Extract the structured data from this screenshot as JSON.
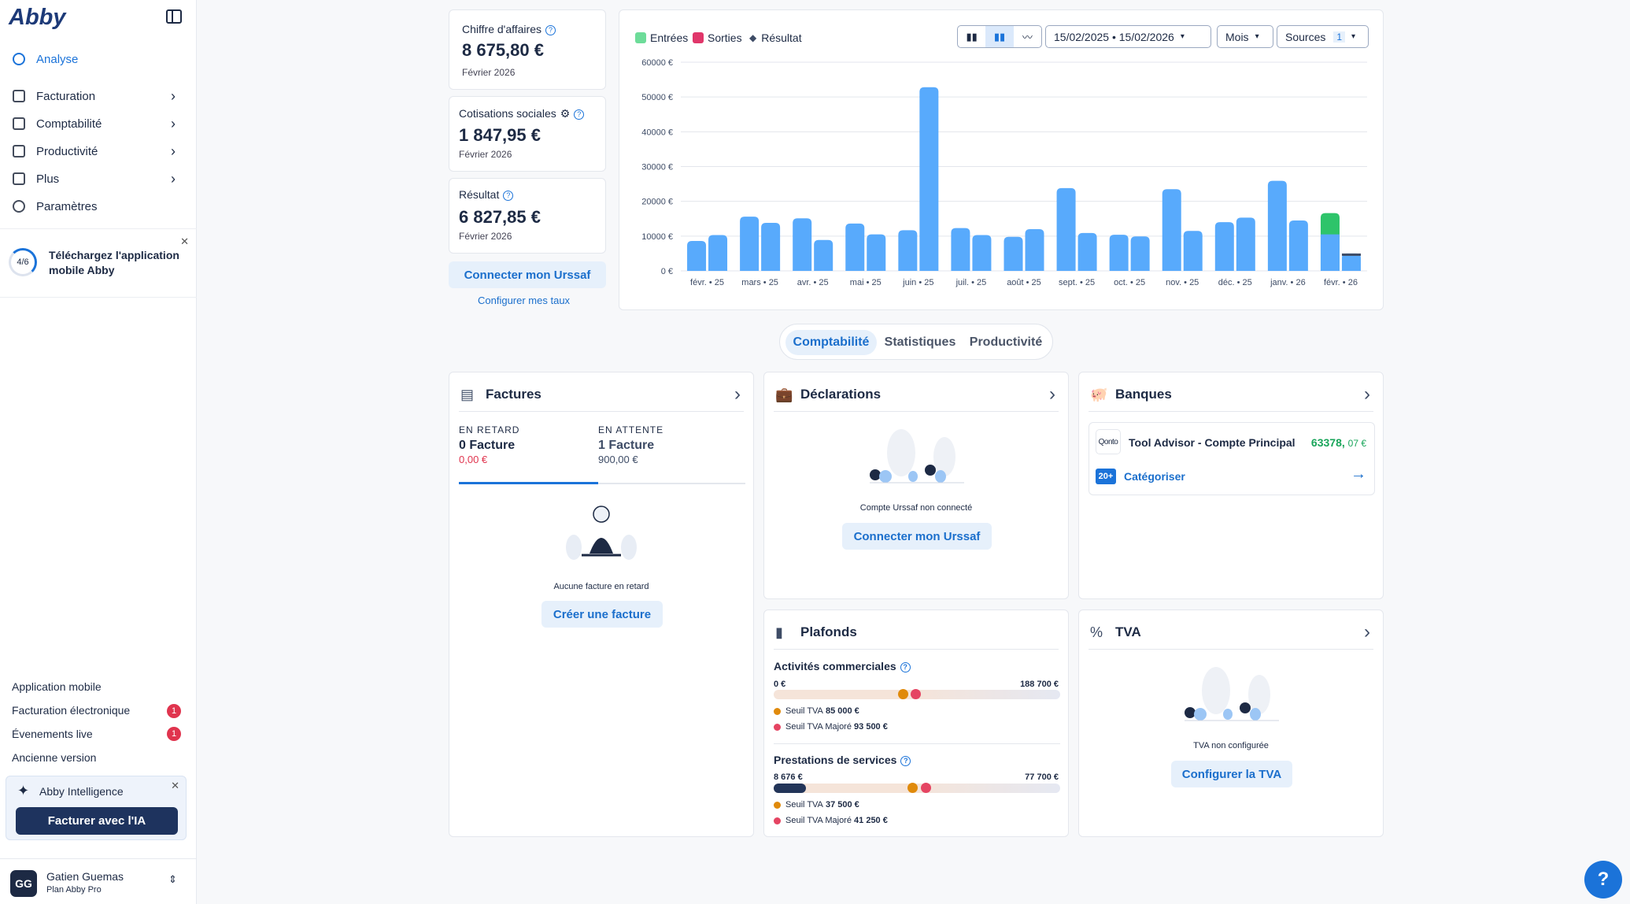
{
  "app": {
    "logo": "Abby"
  },
  "sidebar": {
    "items": [
      {
        "label": "Analyse",
        "icon": "pie-chart-icon"
      },
      {
        "label": "Facturation",
        "icon": "document-icon"
      },
      {
        "label": "Comptabilité",
        "icon": "ledger-icon"
      },
      {
        "label": "Productivité",
        "icon": "grid-icon"
      },
      {
        "label": "Plus",
        "icon": "rocket-icon"
      },
      {
        "label": "Paramètres",
        "icon": "gear-icon"
      }
    ],
    "promo": {
      "progress": "4/6",
      "text": "Téléchargez l'application mobile Abby"
    },
    "bottom_links": [
      "Application mobile",
      "Facturation électronique",
      "Évenements live",
      "Ancienne version"
    ],
    "badges": [
      "1",
      "1"
    ],
    "ai": {
      "title": "Abby Intelligence",
      "button": "Facturer avec l'IA"
    },
    "user": {
      "initials": "GG",
      "name": "Gatien Guemas",
      "plan": "Plan Abby Pro"
    }
  },
  "kpis": {
    "ca": {
      "label": "Chiffre d'affaires",
      "value": "8 675,80 €",
      "period": "Février 2026"
    },
    "cotisations": {
      "label": "Cotisations sociales",
      "value": "1 847,95 €",
      "period": "Février 2026"
    },
    "resultat": {
      "label": "Résultat",
      "value": "6 827,85 €",
      "period": "Février 2026"
    },
    "connect_button": "Connecter mon Urssaf",
    "configure_link": "Configurer mes taux"
  },
  "toolbar": {
    "date_range": "15/02/2025 • 15/02/2026",
    "period": "Mois",
    "sources": "Sources",
    "sources_count": "1"
  },
  "chart_data": {
    "type": "bar",
    "legend": [
      "Entrées",
      "Sorties",
      "Résultat"
    ],
    "colors": {
      "entrees": "#58aafc",
      "sorties": "#e0366a",
      "resultat": "#3e4c66",
      "highlight": "#2ec46a"
    },
    "categories": [
      "févr. • 25",
      "mars • 25",
      "avr. • 25",
      "mai • 25",
      "juin • 25",
      "juil. • 25",
      "août • 25",
      "sept. • 25",
      "oct. • 25",
      "nov. • 25",
      "déc. • 25",
      "janv. • 26",
      "févr. • 26"
    ],
    "ylim": [
      0,
      60000
    ],
    "yticks": [
      "0 €",
      "10000 €",
      "20000 €",
      "30000 €",
      "40000 €",
      "50000 €",
      "60000 €"
    ],
    "series": [
      {
        "values": [
          8600,
          15600,
          15100,
          13600,
          11700,
          12300,
          9800,
          23800,
          10400,
          23500,
          14000,
          25900,
          16600
        ]
      },
      {
        "values": [
          10300,
          13800,
          8900,
          10500,
          52800,
          10300,
          12000,
          10900,
          9900,
          11500,
          15300,
          14500,
          5000
        ]
      }
    ]
  },
  "tabs": [
    "Comptabilité",
    "Statistiques",
    "Productivité"
  ],
  "factures": {
    "title": "Factures",
    "late_label": "EN RETARD",
    "late_count": "0 Facture",
    "late_amount": "0,00 €",
    "pending_label": "EN ATTENTE",
    "pending_count": "1 Facture",
    "pending_amount": "900,00 €",
    "empty_text": "Aucune facture en retard",
    "button": "Créer une facture"
  },
  "declarations": {
    "title": "Déclarations",
    "empty_text": "Compte Urssaf non connecté",
    "button": "Connecter mon Urssaf"
  },
  "banques": {
    "title": "Banques",
    "bank_logo": "Qonto",
    "account": "Tool Advisor - Compte Principal",
    "balance": "63378,",
    "balance_cents": "07 €",
    "pending_count": "20+",
    "categorize": "Catégoriser"
  },
  "plafonds": {
    "title": "Plafonds",
    "commercial": {
      "label": "Activités commerciales",
      "current": "0 €",
      "max": "188 700 €",
      "seuil": "Seuil TVA",
      "seuil_val": "85 000 €",
      "majore": "Seuil TVA Majoré",
      "majore_val": "93 500 €",
      "fill": 0,
      "seuil_pct": 0.45,
      "majore_pct": 0.495
    },
    "services": {
      "label": "Prestations de services",
      "current": "8 676 €",
      "max": "77 700 €",
      "seuil": "Seuil TVA",
      "seuil_val": "37 500 €",
      "majore": "Seuil TVA Majoré",
      "majore_val": "41 250 €",
      "fill": 0.112,
      "seuil_pct": 0.483,
      "majore_pct": 0.531
    }
  },
  "tva": {
    "title": "TVA",
    "empty_text": "TVA non configurée",
    "button": "Configurer la TVA"
  },
  "help": "?"
}
